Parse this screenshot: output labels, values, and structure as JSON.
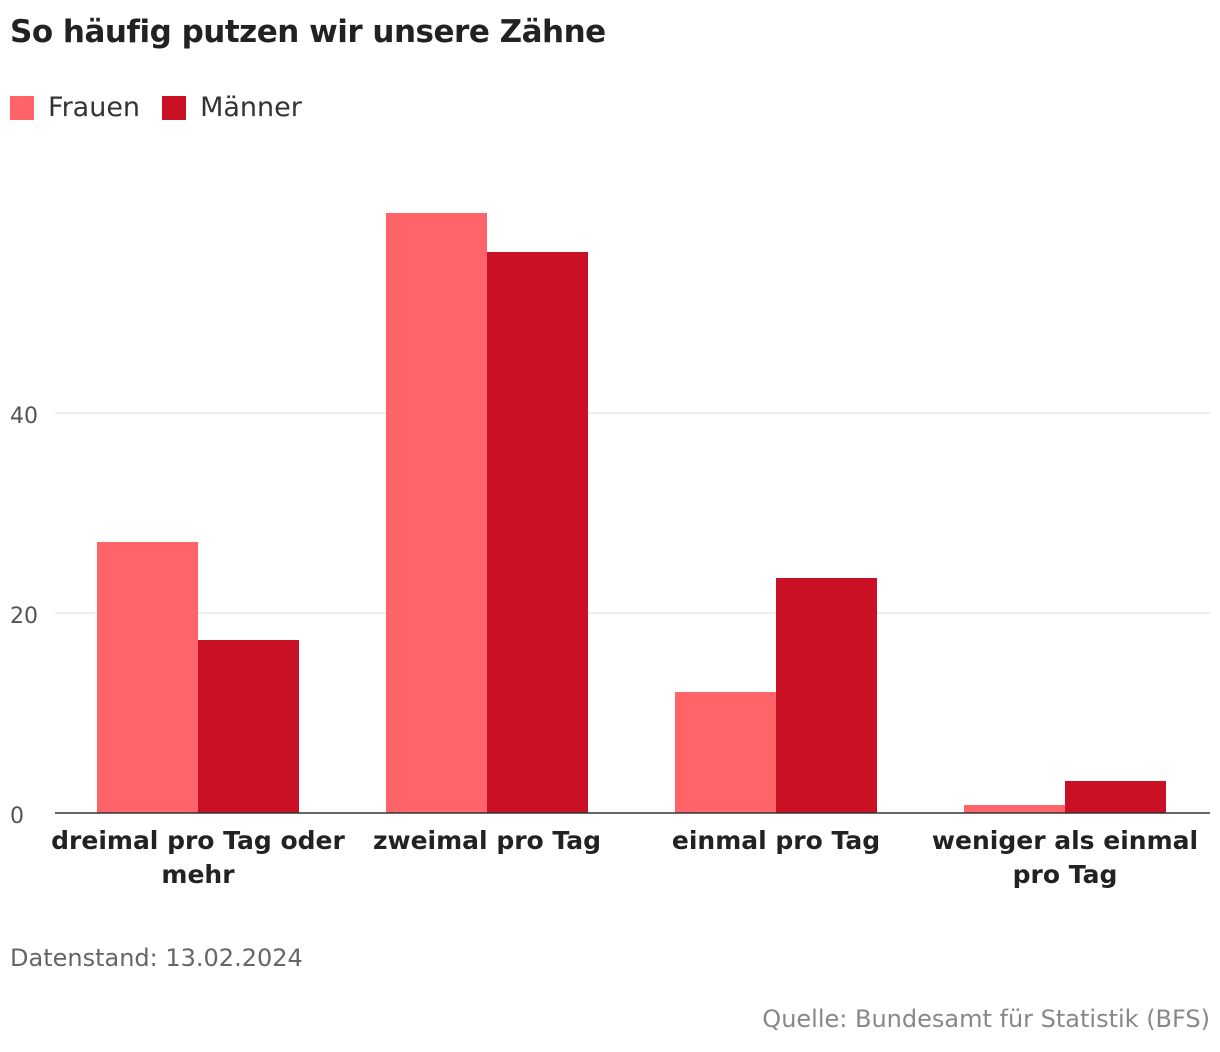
{
  "title": "So häufig putzen wir unsere Zähne",
  "legend": [
    {
      "label": "Frauen",
      "color": "#ff6469"
    },
    {
      "label": "Männer",
      "color": "#c91024"
    }
  ],
  "footer": {
    "date": "Datenstand: 13.02.2024",
    "source": "Quelle: Bundesamt für Statistik (BFS)"
  },
  "chart_data": {
    "type": "bar",
    "title": "So häufig putzen wir unsere Zähne",
    "categories": [
      [
        "dreimal pro Tag oder",
        "mehr"
      ],
      [
        "zweimal pro Tag"
      ],
      [
        "einmal pro Tag"
      ],
      [
        "weniger als einmal",
        "pro Tag"
      ]
    ],
    "series": [
      {
        "name": "Frauen",
        "color": "#ff6469",
        "values": [
          27.1,
          60.0,
          12.1,
          0.8
        ]
      },
      {
        "name": "Männer",
        "color": "#c91024",
        "values": [
          17.3,
          56.1,
          23.5,
          3.2
        ]
      }
    ],
    "yticks": [
      0,
      20,
      40
    ],
    "ylim": [
      0,
      60
    ],
    "xlabel": "",
    "ylabel": "",
    "grid": true,
    "legend_position": "top-left"
  }
}
